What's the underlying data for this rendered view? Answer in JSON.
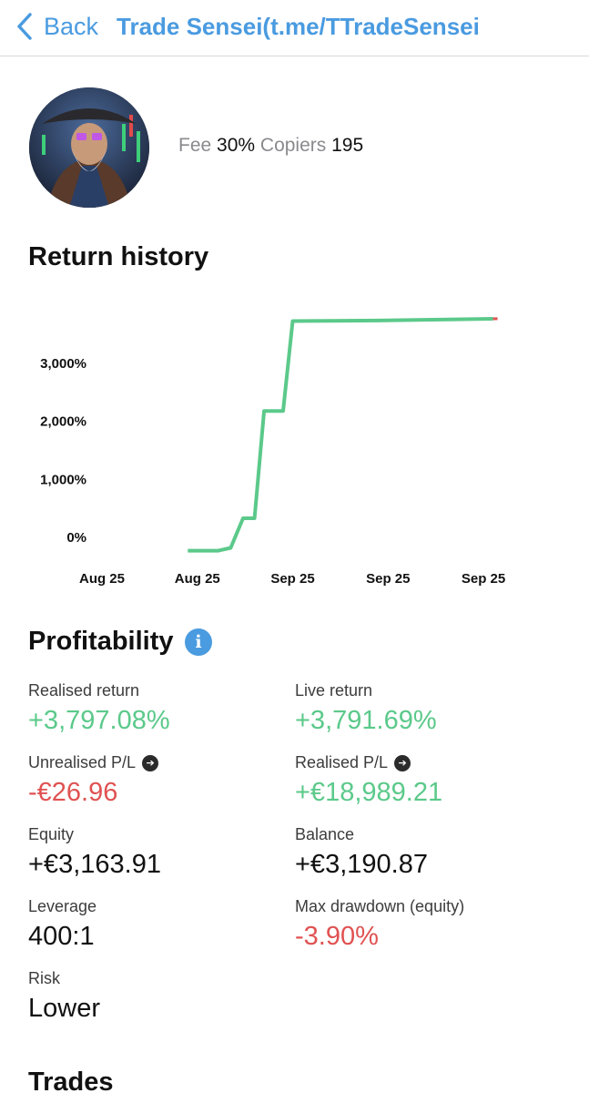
{
  "nav": {
    "back_label": "Back",
    "title": "Trade Sensei(t.me/TTradeSensei"
  },
  "profile": {
    "fee_label": "Fee",
    "fee_value": "30%",
    "copiers_label": "Copiers",
    "copiers_value": "195"
  },
  "return_history": {
    "title": "Return history"
  },
  "chart_data": {
    "type": "line",
    "title": "Return history",
    "xlabel": "",
    "ylabel": "",
    "y_ticks": [
      "0%",
      "1,000%",
      "2,000%",
      "3,000%"
    ],
    "x_ticks": [
      "Aug 25",
      "Aug 25",
      "Sep 25",
      "Sep 25",
      "Sep 25"
    ],
    "ylim": [
      -250,
      3800
    ],
    "x_range": [
      0,
      4.2
    ],
    "grid": false,
    "legend": "none",
    "colors": {
      "line": "#5bc98a",
      "last": "#e05252"
    },
    "series": [
      {
        "x": [
          0.9,
          1.22,
          1.35,
          1.48,
          1.6,
          1.7,
          1.9,
          2.0,
          2.9,
          4.1
        ],
        "y": [
          -230,
          -230,
          -180,
          330,
          330,
          2180,
          2180,
          3730,
          3740,
          3770
        ]
      }
    ],
    "last_segment": {
      "x": [
        4.1,
        4.1
      ],
      "y": [
        3770,
        3772
      ]
    }
  },
  "profitability": {
    "title": "Profitability",
    "realised_return_label": "Realised return",
    "realised_return_value": "+3,797.08%",
    "live_return_label": "Live return",
    "live_return_value": "+3,791.69%",
    "unrealised_pl_label": "Unrealised P/L",
    "unrealised_pl_value": "-€26.96",
    "realised_pl_label": "Realised P/L",
    "realised_pl_value": "+€18,989.21",
    "equity_label": "Equity",
    "equity_value": "+€3,163.91",
    "balance_label": "Balance",
    "balance_value": "+€3,190.87",
    "leverage_label": "Leverage",
    "leverage_value": "400:1",
    "max_drawdown_label": "Max drawdown (equity)",
    "max_drawdown_value": "-3.90%",
    "risk_label": "Risk",
    "risk_value": "Lower"
  },
  "trades": {
    "title": "Trades"
  }
}
